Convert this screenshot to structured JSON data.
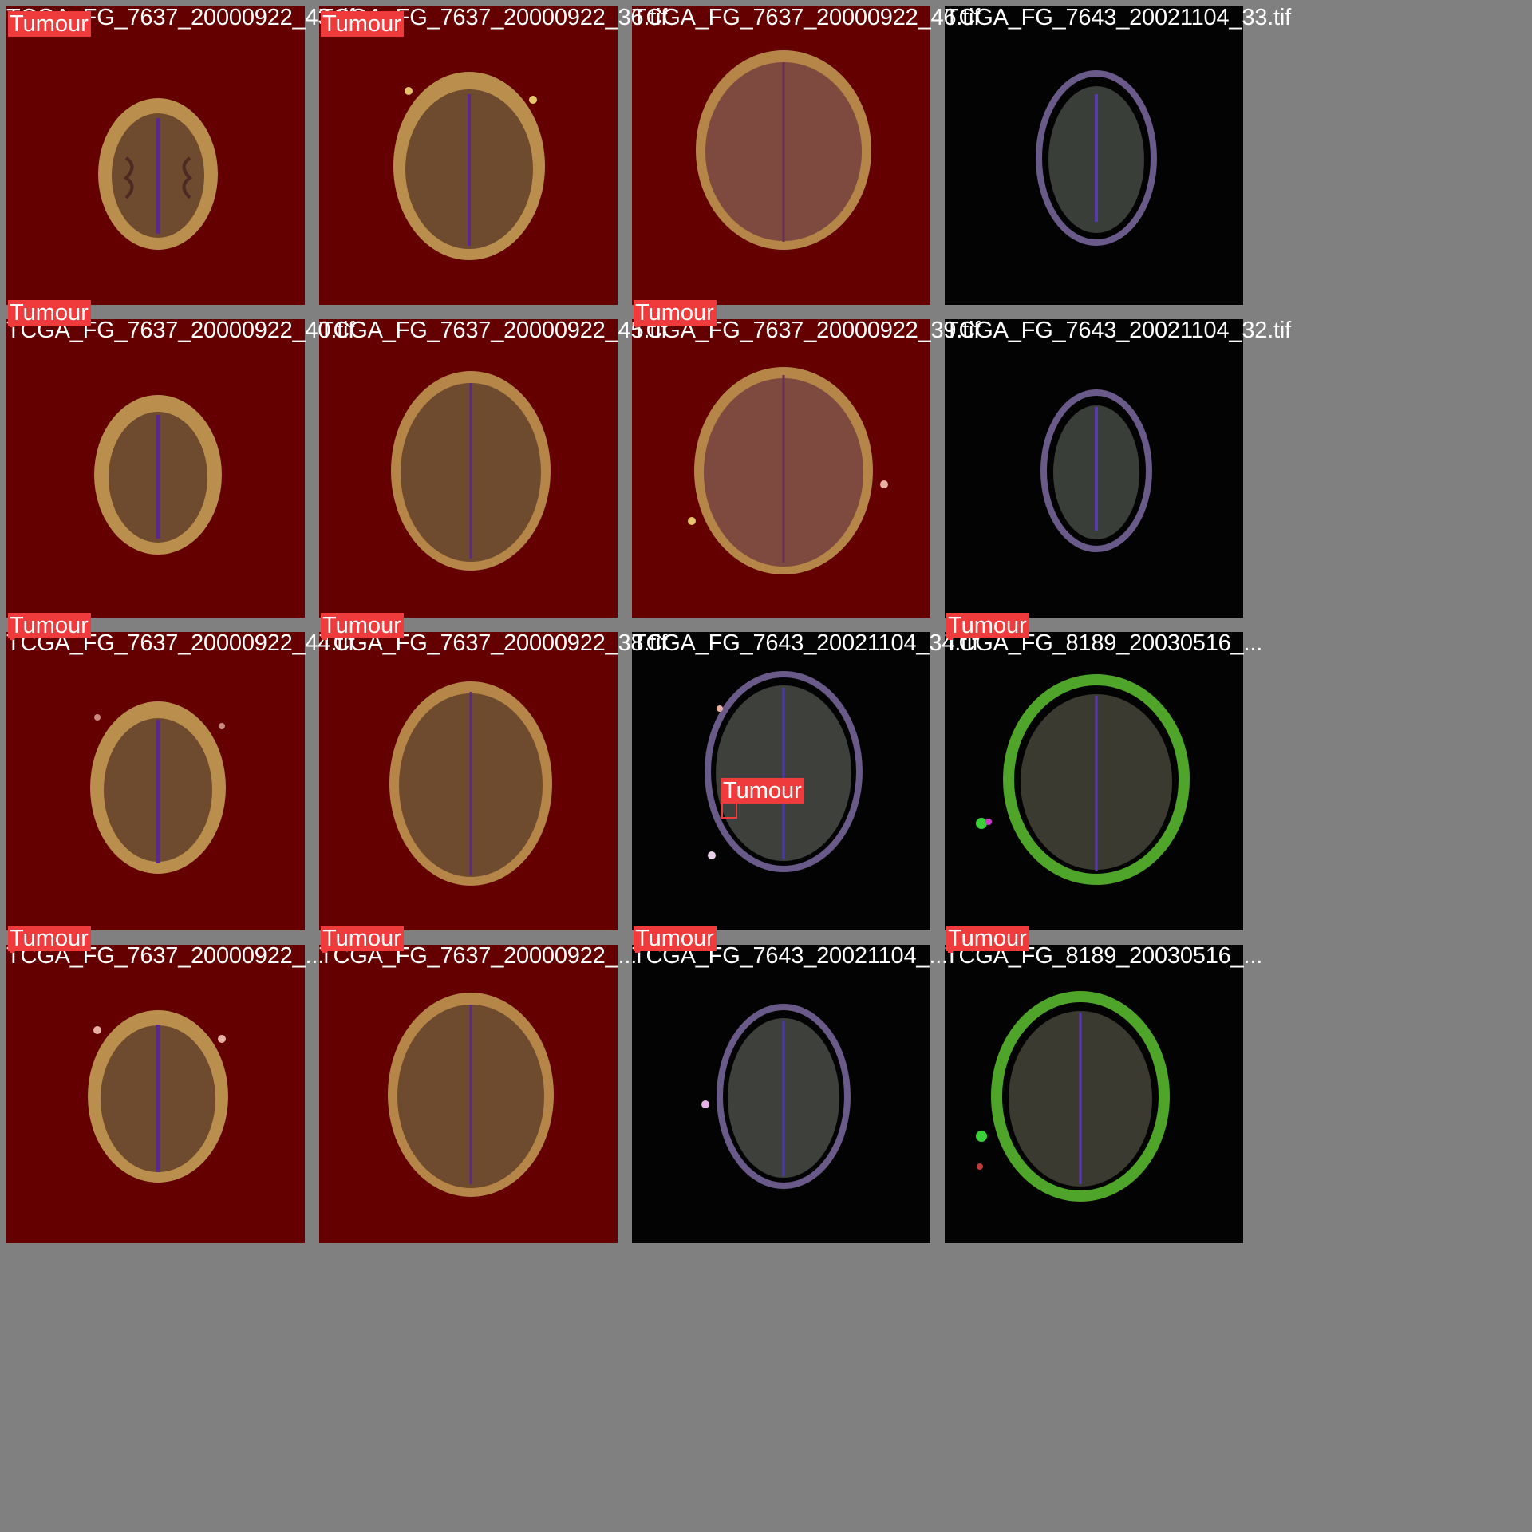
{
  "grid": {
    "label": "Tumour",
    "tiles": [
      {
        "filename": "TCGA_FG_7637_20000922_43.tif",
        "style": "red",
        "tumour": true
      },
      {
        "filename": "TCGA_FG_7637_20000922_36.tif",
        "style": "red",
        "tumour": true
      },
      {
        "filename": "TCGA_FG_7637_20000922_46.tif",
        "style": "red",
        "tumour": false
      },
      {
        "filename": "TCGA_FG_7643_20021104_33.tif",
        "style": "dark",
        "tumour": false
      },
      {
        "filename": "TCGA_FG_7637_20000922_40.tif",
        "style": "red",
        "tumour": true
      },
      {
        "filename": "TCGA_FG_7637_20000922_45.tif",
        "style": "red",
        "tumour": false
      },
      {
        "filename": "TCGA_FG_7637_20000922_39.tif",
        "style": "red",
        "tumour": true
      },
      {
        "filename": "TCGA_FG_7643_20021104_32.tif",
        "style": "dark",
        "tumour": false
      },
      {
        "filename": "TCGA_FG_7637_20000922_44.tif",
        "style": "red",
        "tumour": true
      },
      {
        "filename": "TCGA_FG_7637_20000922_38.tif",
        "style": "red",
        "tumour": true
      },
      {
        "filename": "TCGA_FG_7643_20021104_34.tif",
        "style": "dark",
        "tumour": true
      },
      {
        "filename": "TCGA_FG_8189_20030516_...",
        "style": "green",
        "tumour": true
      },
      {
        "filename": "TCGA_FG_7637_20000922_...",
        "style": "red",
        "tumour": true
      },
      {
        "filename": "TCGA_FG_7637_20000922_...",
        "style": "red",
        "tumour": true
      },
      {
        "filename": "TCGA_FG_7643_20021104_...",
        "style": "dark",
        "tumour": true
      },
      {
        "filename": "TCGA_FG_8189_20030516_...",
        "style": "green",
        "tumour": true
      }
    ]
  },
  "colors": {
    "label_bg": "#ef3b3b",
    "red_bg": "#640000",
    "dark_bg": "#030303",
    "separator": "#808080"
  }
}
